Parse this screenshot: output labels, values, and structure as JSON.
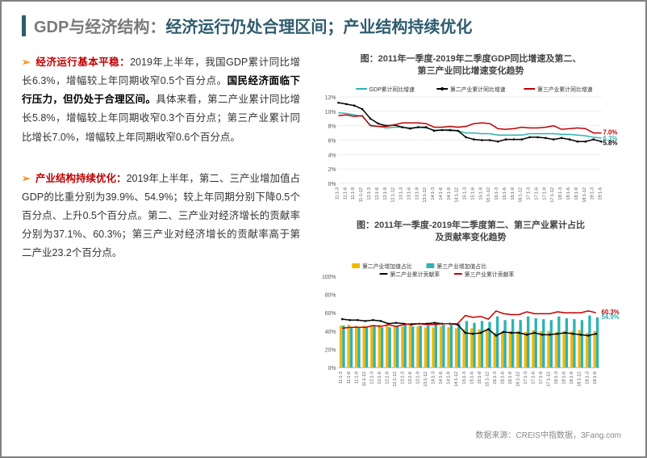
{
  "title": {
    "prefix": "GDP与经济结构：",
    "main": "经济运行仍处合理区间；产业结构持续优化"
  },
  "p1": {
    "lead": "经济运行基本平稳：",
    "t1": "2019年上半年，我国GDP累计同比增长6.3%，增幅较上年同期收窄0.5个百分点。",
    "bold": "国民经济面临下行压力，但仍处于合理区间。",
    "t2": "具体来看，第二产业累计同比增长5.8%，增幅较上年同期收窄0.3个百分点；第三产业累计同比增长7.0%，增幅较上年同期收窄0.6个百分点。"
  },
  "p2": {
    "lead": "产业结构持续优化：",
    "t": "2019年上半年，第二、三产业增加值占GDP的比重分别为39.9%、54.9%；较上年同期分别下降0.5个百分点、上升0.5个百分点。第二、三产业对经济增长的贡献率分别为37.1%、60.3%；第三产业对经济增长的贡献率高于第二产业23.2个百分点。"
  },
  "chart1": {
    "title": "图：2011年一季度-2019年二季度GDP同比增速及第二、\n第三产业同比增速变化趋势",
    "legend": [
      "GDP累计同比增速",
      "第二产业累计同比增速",
      "第三产业累计同比增速"
    ],
    "legend_colors": [
      "#2db3b3",
      "#000000",
      "#c00000"
    ],
    "ylim": [
      0,
      12
    ],
    "yticks": [
      0,
      2,
      4,
      6,
      8,
      10,
      12
    ],
    "xlabels": [
      "11:1-3",
      "11:1-6",
      "11:1-9",
      "11:1-12",
      "12:1-3",
      "12:1-6",
      "12:1-9",
      "12:1-12",
      "13:1-3",
      "13:1-6",
      "13:1-9",
      "13:1-12",
      "14:1-3",
      "14:1-6",
      "14:1-9",
      "14:1-12",
      "15:1-3",
      "15:1-6",
      "15:1-9",
      "15:1-12",
      "16:1-3",
      "16:1-6",
      "16:1-9",
      "16:1-12",
      "17:1-3",
      "17:1-6",
      "17:1-9",
      "17:1-12",
      "18:1-3",
      "18:1-6",
      "18:1-9",
      "18:1-12",
      "19:1-3",
      "19:1-6"
    ],
    "gdp": [
      9.8,
      9.7,
      9.5,
      9.3,
      8.1,
      7.9,
      7.7,
      7.8,
      7.8,
      7.7,
      7.8,
      7.7,
      7.4,
      7.4,
      7.3,
      7.3,
      7.0,
      7.0,
      6.9,
      6.9,
      6.7,
      6.7,
      6.7,
      6.7,
      6.9,
      6.9,
      6.9,
      6.9,
      6.8,
      6.8,
      6.7,
      6.6,
      6.4,
      6.3
    ],
    "s2": [
      11.2,
      11.0,
      10.8,
      10.3,
      9.0,
      8.3,
      8.0,
      8.1,
      7.8,
      7.6,
      7.8,
      7.8,
      7.3,
      7.4,
      7.4,
      7.3,
      6.4,
      6.1,
      6.0,
      6.0,
      5.8,
      6.1,
      6.1,
      6.1,
      6.4,
      6.4,
      6.3,
      6.1,
      6.3,
      6.1,
      5.8,
      5.8,
      6.1,
      5.8
    ],
    "s3": [
      9.4,
      9.5,
      9.3,
      9.4,
      8.0,
      7.9,
      7.9,
      8.1,
      8.4,
      8.4,
      8.4,
      8.3,
      7.8,
      7.8,
      7.9,
      7.8,
      7.9,
      8.3,
      8.4,
      8.3,
      7.6,
      7.5,
      7.6,
      7.8,
      7.7,
      7.7,
      7.8,
      8.0,
      7.5,
      7.6,
      7.7,
      7.6,
      7.0,
      7.0
    ],
    "end_labels": {
      "gdp": "6.3%",
      "s2": "5.8%",
      "s3": "7.0%"
    },
    "end_colors": {
      "gdp": "#2db3b3",
      "s2": "#000",
      "s3": "#c00000"
    }
  },
  "chart2": {
    "title": "图：2011年一季度-2019年二季度第二、第三产业累计占比\n及贡献率变化趋势",
    "legend": [
      "第二产业增加值占比",
      "第三产业增加值占比",
      "第二产业累计贡献率",
      "第三产业累计贡献率"
    ],
    "legend_colors": [
      "#f5b800",
      "#2db3b3",
      "#000000",
      "#c00000"
    ],
    "ylim": [
      0,
      100
    ],
    "yticks": [
      0,
      20,
      40,
      60,
      80,
      100
    ],
    "xlabels": [
      "11:1-3",
      "11:1-6",
      "11:1-9",
      "11:1-12",
      "12:1-3",
      "12:1-6",
      "12:1-9",
      "12:1-12",
      "13:1-3",
      "13:1-6",
      "13:1-9",
      "13:1-12",
      "14:1-3",
      "14:1-6",
      "14:1-9",
      "14:1-12",
      "15:1-3",
      "15:1-6",
      "15:1-9",
      "15:1-12",
      "16:1-3",
      "16:1-6",
      "16:1-9",
      "16:1-12",
      "17:1-3",
      "17:1-6",
      "17:1-9",
      "17:1-12",
      "18:1-3",
      "18:1-6",
      "18:1-9",
      "18:1-12",
      "19:1-3",
      "19:1-6"
    ],
    "bar2": [
      46,
      47,
      46,
      46,
      46,
      47,
      46,
      45,
      45,
      46,
      45,
      44,
      44,
      45,
      44,
      43,
      42,
      43,
      42,
      41,
      38,
      40,
      40,
      40,
      39,
      41,
      40,
      40,
      39,
      40,
      40,
      41,
      38,
      40
    ],
    "bar3": [
      46,
      44,
      44,
      44,
      46,
      44,
      44,
      45,
      48,
      45,
      46,
      46,
      49,
      47,
      47,
      48,
      51,
      49,
      51,
      50,
      56,
      52,
      53,
      52,
      56,
      54,
      53,
      52,
      56,
      54,
      53,
      52,
      57,
      55
    ],
    "line2": [
      53,
      52,
      52,
      51,
      52,
      51,
      48,
      49,
      48,
      47,
      48,
      48,
      49,
      48,
      48,
      47,
      38,
      37,
      38,
      42,
      35,
      39,
      38,
      38,
      36,
      38,
      36,
      36,
      37,
      38,
      37,
      36,
      35,
      37
    ],
    "line3": [
      43,
      44,
      44,
      44,
      46,
      45,
      47,
      45,
      47,
      48,
      48,
      47,
      47,
      48,
      48,
      48,
      57,
      55,
      56,
      53,
      62,
      59,
      58,
      58,
      61,
      59,
      59,
      59,
      61,
      60,
      60,
      60,
      62,
      60
    ],
    "end_labels": {
      "bar3": "54.9%",
      "line3": "60.3%"
    },
    "end_colors": {
      "bar3": "#2db3b3",
      "line3": "#c00000"
    }
  },
  "footer": "数据来源：CREIS中指数据，3Fang.com"
}
